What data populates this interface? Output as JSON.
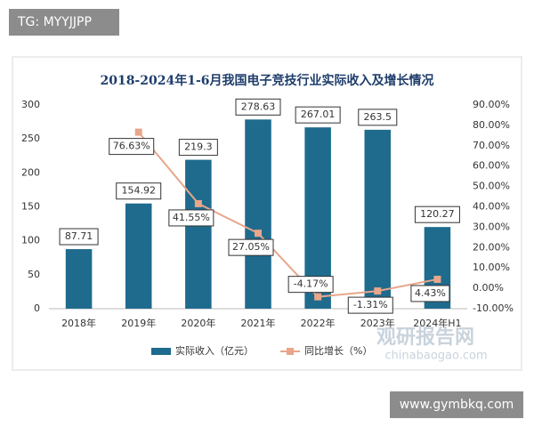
{
  "chart_data": {
    "type": "bar-line",
    "title": "2018-2024年1-6月我国电子竞技行业实际收入及增长情况",
    "categories": [
      "2018年",
      "2019年",
      "2020年",
      "2021年",
      "2022年",
      "2023年",
      "2024年H1"
    ],
    "series": [
      {
        "name": "实际收入（亿元）",
        "type": "bar",
        "color": "#1f6b8e",
        "values": [
          87.71,
          154.92,
          219.3,
          278.63,
          267.01,
          263.5,
          120.27
        ]
      },
      {
        "name": "同比增长（%）",
        "type": "line",
        "axis": "y2",
        "color": "#e8a68a",
        "values": [
          null,
          76.63,
          41.55,
          27.05,
          -4.17,
          -1.31,
          4.43
        ],
        "value_labels": [
          null,
          "76.63%",
          "41.55%",
          "27.05%",
          "-4.17%",
          "-1.31%",
          "4.43%"
        ]
      }
    ],
    "ylim": [
      0,
      300
    ],
    "yticks": [
      0,
      50,
      100,
      150,
      200,
      250,
      300
    ],
    "y2lim": [
      -10,
      90
    ],
    "y2ticks": [
      {
        "value": -10,
        "label": "-10.00%"
      },
      {
        "value": 0,
        "label": "0.00%"
      },
      {
        "value": 10,
        "label": "10.00%"
      },
      {
        "value": 20,
        "label": "20.00%"
      },
      {
        "value": 30,
        "label": "30.00%"
      },
      {
        "value": 40,
        "label": "40.00%"
      },
      {
        "value": 50,
        "label": "50.00%"
      },
      {
        "value": 60,
        "label": "60.00%"
      },
      {
        "value": 70,
        "label": "70.00%"
      },
      {
        "value": 80,
        "label": "80.00%"
      },
      {
        "value": 90,
        "label": "90.00%"
      }
    ],
    "grid": false,
    "legend": "bottom"
  },
  "watermarks": {
    "top_left": "TG: MYYJJPP",
    "brand": "观研报告网",
    "brand_url": "chinabaogao.com",
    "bottom_right": "www.gymbkq.com"
  }
}
